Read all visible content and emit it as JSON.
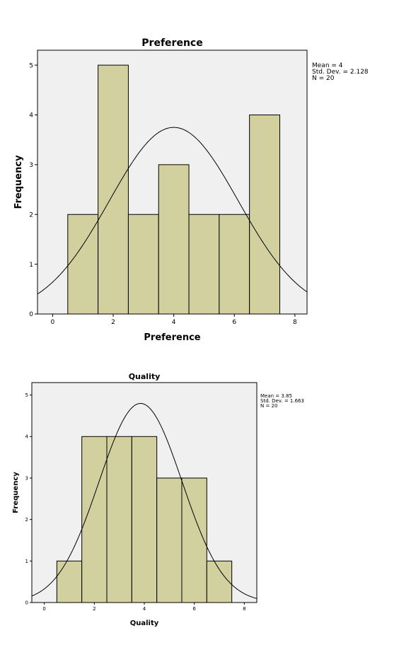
{
  "chart_data": [
    {
      "type": "bar",
      "subtype": "histogram",
      "title": "Preference",
      "xlabel": "Preference",
      "ylabel": "Frequency",
      "bins": [
        {
          "center": 1,
          "value": 2
        },
        {
          "center": 2,
          "value": 5
        },
        {
          "center": 3,
          "value": 2
        },
        {
          "center": 4,
          "value": 3
        },
        {
          "center": 5,
          "value": 2
        },
        {
          "center": 6,
          "value": 2
        },
        {
          "center": 7,
          "value": 4
        }
      ],
      "bin_width": 1,
      "xlim": [
        -0.5,
        8.4
      ],
      "ylim": [
        0,
        5.3
      ],
      "xticks": [
        0,
        2,
        4,
        6,
        8
      ],
      "yticks": [
        0,
        1,
        2,
        3,
        4,
        5
      ],
      "normal_curve": {
        "mean": 4,
        "sd": 2.128,
        "n": 20
      },
      "stats": [
        "Mean = 4",
        "Std. Dev. = 2.128",
        "N = 20"
      ],
      "colors": {
        "bar": "#d3d0a0",
        "plot_bg": "#f0f0f0",
        "curve": "#000000"
      }
    },
    {
      "type": "bar",
      "subtype": "histogram",
      "title": "Quality",
      "xlabel": "Quality",
      "ylabel": "Frequency",
      "bins": [
        {
          "center": 1,
          "value": 1
        },
        {
          "center": 2,
          "value": 4
        },
        {
          "center": 3,
          "value": 4
        },
        {
          "center": 4,
          "value": 4
        },
        {
          "center": 5,
          "value": 3
        },
        {
          "center": 6,
          "value": 3
        },
        {
          "center": 7,
          "value": 1
        }
      ],
      "bin_width": 1,
      "xlim": [
        -0.5,
        8.5
      ],
      "ylim": [
        0,
        5.3
      ],
      "xticks": [
        0,
        2,
        4,
        6,
        8
      ],
      "yticks": [
        0,
        1,
        2,
        3,
        4,
        5
      ],
      "normal_curve": {
        "mean": 3.85,
        "sd": 1.663,
        "n": 20
      },
      "stats": [
        "Mean = 3.85",
        "Std. Dev. = 1.663",
        "N = 20"
      ],
      "colors": {
        "bar": "#d3d0a0",
        "plot_bg": "#f0f0f0",
        "curve": "#000000"
      }
    }
  ]
}
